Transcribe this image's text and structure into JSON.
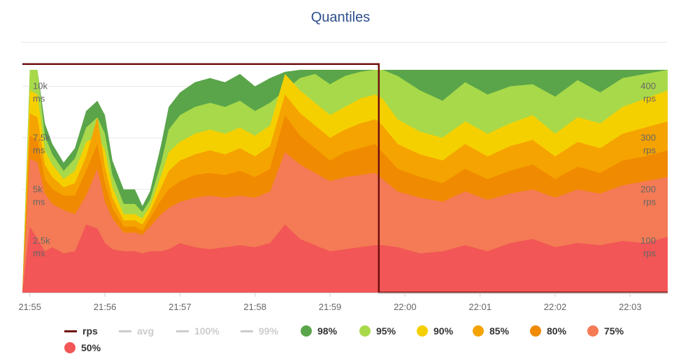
{
  "chart_data": {
    "type": "area",
    "title": "Quantiles",
    "x_ticks": [
      "21:55",
      "21:56",
      "21:57",
      "21:58",
      "21:59",
      "22:00",
      "22:01",
      "22:02",
      "22:03"
    ],
    "y_left": {
      "ticks": [
        {
          "value": 2500,
          "label": "2.5k",
          "unit": "ms"
        },
        {
          "value": 5000,
          "label": "5k",
          "unit": "ms"
        },
        {
          "value": 7500,
          "label": "7.5k",
          "unit": "ms"
        },
        {
          "value": 10000,
          "label": "10k",
          "unit": "ms"
        }
      ],
      "range": [
        0,
        10900
      ]
    },
    "y_right": {
      "ticks": [
        {
          "value": 100,
          "label": "100",
          "unit": "rps"
        },
        {
          "value": 200,
          "label": "200",
          "unit": "rps"
        },
        {
          "value": 300,
          "label": "300",
          "unit": "rps"
        },
        {
          "value": 400,
          "label": "400",
          "unit": "rps"
        }
      ],
      "range": [
        0,
        436
      ]
    },
    "x_minutes_range": [
      -0.1,
      8.5
    ],
    "grid": true,
    "legend_position": "bottom",
    "rps": {
      "name": "rps",
      "color": "#6e0f0f",
      "x": [
        -0.1,
        4.65,
        4.65,
        8.5
      ],
      "values": [
        443,
        443,
        0,
        0
      ]
    },
    "quantile_series": [
      {
        "name": "98%",
        "color": "#5aa54a",
        "x": [
          -0.1,
          0.0,
          0.1,
          0.2,
          0.3,
          0.45,
          0.6,
          0.75,
          0.9,
          1.0,
          1.1,
          1.25,
          1.4,
          1.5,
          1.6,
          1.75,
          1.85,
          2.0,
          2.2,
          2.4,
          2.6,
          2.8,
          3.0,
          3.2,
          3.4,
          3.6,
          3.8,
          4.0,
          4.2,
          4.4,
          4.6,
          4.7,
          4.9,
          5.2,
          5.5,
          5.8,
          6.1,
          6.4,
          6.7,
          7.0,
          7.3,
          7.6,
          7.9,
          8.2,
          8.5
        ],
        "values": [
          0,
          10800,
          10800,
          8200,
          7200,
          6300,
          7000,
          8800,
          9300,
          8600,
          6400,
          5000,
          5000,
          4200,
          4900,
          7200,
          9000,
          9700,
          10200,
          10400,
          10200,
          10600,
          10000,
          10400,
          10700,
          10800,
          10800,
          10800,
          10800,
          10800,
          10800,
          10800,
          10800,
          10800,
          10800,
          10800,
          10800,
          10800,
          10800,
          10800,
          10800,
          10800,
          10800,
          10800,
          10800
        ]
      },
      {
        "name": "95%",
        "color": "#a8d94a",
        "x": [
          -0.1,
          0.0,
          0.1,
          0.2,
          0.3,
          0.45,
          0.6,
          0.75,
          0.9,
          1.0,
          1.1,
          1.25,
          1.4,
          1.5,
          1.6,
          1.75,
          1.85,
          2.0,
          2.2,
          2.4,
          2.6,
          2.8,
          3.0,
          3.2,
          3.4,
          3.6,
          3.8,
          4.0,
          4.2,
          4.4,
          4.6,
          4.7,
          4.9,
          5.2,
          5.5,
          5.8,
          6.1,
          6.4,
          6.7,
          7.0,
          7.3,
          7.6,
          7.9,
          8.2,
          8.5
        ],
        "values": [
          0,
          10800,
          10800,
          7600,
          6700,
          5900,
          6500,
          8000,
          8500,
          7700,
          5700,
          4300,
          4300,
          3900,
          4500,
          6300,
          7900,
          8600,
          9000,
          9200,
          9000,
          9300,
          8800,
          9200,
          9800,
          10400,
          10600,
          10100,
          10500,
          10700,
          10800,
          10800,
          10500,
          9800,
          9300,
          10200,
          9600,
          10000,
          10100,
          9500,
          10300,
          9700,
          10400,
          10600,
          10800
        ]
      },
      {
        "name": "90%",
        "color": "#f5d000",
        "x": [
          -0.1,
          0.0,
          0.1,
          0.2,
          0.3,
          0.45,
          0.6,
          0.75,
          0.9,
          1.0,
          1.1,
          1.25,
          1.4,
          1.5,
          1.6,
          1.75,
          1.85,
          2.0,
          2.2,
          2.4,
          2.6,
          2.8,
          3.0,
          3.2,
          3.4,
          3.6,
          3.8,
          4.0,
          4.2,
          4.4,
          4.6,
          4.7,
          4.9,
          5.2,
          5.5,
          5.8,
          6.1,
          6.4,
          6.7,
          7.0,
          7.3,
          7.6,
          7.9,
          8.2,
          8.5
        ],
        "values": [
          0,
          9800,
          9600,
          6900,
          6200,
          5500,
          5900,
          7300,
          7600,
          6900,
          5100,
          3800,
          3800,
          3600,
          4200,
          5700,
          6800,
          7300,
          7700,
          7900,
          7700,
          8000,
          7600,
          8100,
          10600,
          9800,
          9200,
          8600,
          9000,
          9400,
          9600,
          9400,
          8400,
          7800,
          7500,
          8300,
          7700,
          8200,
          8600,
          7700,
          8500,
          8200,
          9000,
          9400,
          9800
        ]
      },
      {
        "name": "85%",
        "color": "#f5a300",
        "x": [
          -0.1,
          0.0,
          0.1,
          0.2,
          0.3,
          0.45,
          0.6,
          0.75,
          0.9,
          1.0,
          1.1,
          1.25,
          1.4,
          1.5,
          1.6,
          1.75,
          1.85,
          2.0,
          2.2,
          2.4,
          2.6,
          2.8,
          3.0,
          3.2,
          3.4,
          3.6,
          3.8,
          4.0,
          4.2,
          4.4,
          4.6,
          4.7,
          4.9,
          5.2,
          5.5,
          5.8,
          6.1,
          6.4,
          6.7,
          7.0,
          7.3,
          7.6,
          7.9,
          8.2,
          8.5
        ],
        "values": [
          0,
          8700,
          8500,
          6200,
          5600,
          5100,
          5300,
          6600,
          8500,
          6100,
          4600,
          3500,
          3500,
          3300,
          3900,
          5100,
          5900,
          6400,
          6700,
          6900,
          6700,
          7000,
          6600,
          7100,
          9600,
          8700,
          8100,
          7500,
          7900,
          8200,
          8400,
          8100,
          7200,
          6700,
          6400,
          7200,
          6600,
          7100,
          7400,
          6600,
          7300,
          7000,
          7700,
          8000,
          8300
        ]
      },
      {
        "name": "80%",
        "color": "#f08a00",
        "x": [
          -0.1,
          0.0,
          0.1,
          0.2,
          0.3,
          0.45,
          0.6,
          0.75,
          0.9,
          1.0,
          1.1,
          1.25,
          1.4,
          1.5,
          1.6,
          1.75,
          1.85,
          2.0,
          2.2,
          2.4,
          2.6,
          2.8,
          3.0,
          3.2,
          3.4,
          3.6,
          3.8,
          4.0,
          4.2,
          4.4,
          4.6,
          4.7,
          4.9,
          5.2,
          5.5,
          5.8,
          6.1,
          6.4,
          6.7,
          7.0,
          7.3,
          7.6,
          7.9,
          8.2,
          8.5
        ],
        "values": [
          0,
          7600,
          7400,
          5500,
          5000,
          4700,
          4700,
          5900,
          7200,
          5300,
          4100,
          3200,
          3200,
          3000,
          3600,
          4500,
          5000,
          5400,
          5700,
          5800,
          5700,
          5900,
          5600,
          6000,
          8600,
          7600,
          7000,
          6400,
          6800,
          7000,
          7200,
          6800,
          6000,
          5600,
          5300,
          6000,
          5500,
          5900,
          6200,
          5500,
          6100,
          5800,
          6400,
          6600,
          6900
        ]
      },
      {
        "name": "75%",
        "color": "#f47b55",
        "x": [
          -0.1,
          0.0,
          0.1,
          0.2,
          0.3,
          0.45,
          0.6,
          0.75,
          0.9,
          1.0,
          1.1,
          1.25,
          1.4,
          1.5,
          1.6,
          1.75,
          1.85,
          2.0,
          2.2,
          2.4,
          2.6,
          2.8,
          3.0,
          3.2,
          3.4,
          3.6,
          3.8,
          4.0,
          4.2,
          4.4,
          4.6,
          4.7,
          4.9,
          5.2,
          5.5,
          5.8,
          6.1,
          6.4,
          6.7,
          7.0,
          7.3,
          7.6,
          7.9,
          8.2,
          8.5
        ],
        "values": [
          0,
          6500,
          6300,
          4800,
          4300,
          4000,
          3800,
          4700,
          6000,
          4400,
          3600,
          2900,
          2900,
          2800,
          3200,
          3800,
          4100,
          4400,
          4600,
          4700,
          4600,
          4700,
          4600,
          4900,
          6800,
          6200,
          5800,
          5400,
          5600,
          5700,
          5800,
          5500,
          4900,
          4600,
          4400,
          4900,
          4500,
          4800,
          5000,
          4600,
          5000,
          4800,
          5200,
          5400,
          5600
        ]
      },
      {
        "name": "50%",
        "color": "#f25656",
        "x": [
          -0.1,
          0.0,
          0.1,
          0.2,
          0.3,
          0.45,
          0.6,
          0.75,
          0.9,
          1.0,
          1.1,
          1.25,
          1.4,
          1.5,
          1.6,
          1.75,
          1.85,
          2.0,
          2.2,
          2.4,
          2.6,
          2.8,
          3.0,
          3.2,
          3.4,
          3.6,
          3.8,
          4.0,
          4.2,
          4.4,
          4.6,
          4.7,
          4.9,
          5.2,
          5.5,
          5.8,
          6.1,
          6.4,
          6.7,
          7.0,
          7.3,
          7.6,
          7.9,
          8.2,
          8.5
        ],
        "values": [
          0,
          3200,
          2600,
          2000,
          2200,
          1900,
          2000,
          3300,
          3100,
          2400,
          2100,
          2000,
          2000,
          1900,
          2000,
          2000,
          2100,
          2400,
          2200,
          2100,
          2200,
          2300,
          2200,
          2400,
          3300,
          2600,
          2300,
          2000,
          2100,
          2200,
          2300,
          2300,
          2200,
          1900,
          2000,
          2300,
          2000,
          2400,
          2600,
          2200,
          2400,
          2300,
          2500,
          2400,
          2700
        ]
      }
    ],
    "legend": [
      {
        "name": "rps",
        "kind": "line",
        "color": "#6e0f0f",
        "active": true
      },
      {
        "name": "avg",
        "kind": "line",
        "color": "#cccccc",
        "active": false
      },
      {
        "name": "100%",
        "kind": "line",
        "color": "#cccccc",
        "active": false
      },
      {
        "name": "99%",
        "kind": "line",
        "color": "#cccccc",
        "active": false
      },
      {
        "name": "98%",
        "kind": "dot",
        "color": "#5aa54a",
        "active": true
      },
      {
        "name": "95%",
        "kind": "dot",
        "color": "#a8d94a",
        "active": true
      },
      {
        "name": "90%",
        "kind": "dot",
        "color": "#f5d000",
        "active": true
      },
      {
        "name": "85%",
        "kind": "dot",
        "color": "#f5a300",
        "active": true
      },
      {
        "name": "80%",
        "kind": "dot",
        "color": "#f08a00",
        "active": true
      },
      {
        "name": "75%",
        "kind": "dot",
        "color": "#f47b55",
        "active": true
      },
      {
        "name": "50%",
        "kind": "dot",
        "color": "#f25656",
        "active": true
      }
    ]
  }
}
